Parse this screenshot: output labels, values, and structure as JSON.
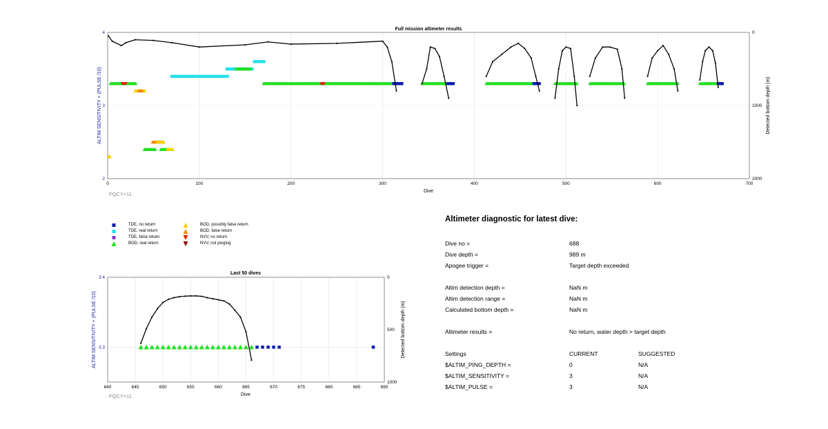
{
  "top_chart": {
    "title": "Full mission altimeter results",
    "ylabel_left": "ALTIM SENSITIVITY + (PULSE /10)",
    "ylabel_right": "Detected bottom depth (m)",
    "xlabel": "Dive",
    "footnote": "FQCY=11",
    "x_ticks": [
      "0",
      "100",
      "200",
      "300",
      "400",
      "500",
      "600",
      "700"
    ],
    "y_left_ticks": [
      "2",
      "3",
      "4"
    ],
    "y_right_ticks": [
      "0",
      "1000",
      "2000"
    ]
  },
  "bottom_chart": {
    "title": "Last 50 dives",
    "ylabel_left": "ALTIM SENSITIVITY + (PULSE /10)",
    "ylabel_right": "Detected bottom depth (m)",
    "xlabel": "Dive",
    "footnote": "FQCY=11",
    "x_ticks": [
      "640",
      "645",
      "650",
      "655",
      "660",
      "665",
      "670",
      "675",
      "680",
      "685",
      "690"
    ],
    "y_left_ticks": [
      "3.4",
      "3.3"
    ],
    "y_right_ticks": [
      "0",
      "500",
      "1000"
    ]
  },
  "legend": {
    "tde_no_return": "TDE, no return",
    "tde_real_return": "TDE, real return",
    "tde_false_return": "TDE, false return",
    "bod_real_return": "BOD, real return",
    "bod_possibly_false": "BOD, possibly false return",
    "bod_false_return": "BOD, false return",
    "nvv_no_return": "NVV, no return",
    "nvv_not_pinging": "NVV, not pinging"
  },
  "diagnostic": {
    "title": "Altimeter diagnostic for latest dive:",
    "dive_no_label": "Dive no =",
    "dive_no_value": "688",
    "dive_depth_label": "Dive depth =",
    "dive_depth_value": "989 m",
    "apogee_label": "Apogee trigger =",
    "apogee_value": "Target depth exceeded",
    "altim_det_depth_label": "Altim detection depth =",
    "altim_det_depth_value": "NaN m",
    "altim_det_range_label": "Altim detection range =",
    "altim_det_range_value": "NaN m",
    "calc_bottom_label": "Calculated bottom depth =",
    "calc_bottom_value": "NaN m",
    "results_label": "Altimeter results =",
    "results_value": "No return, water depth > target depth",
    "settings_label": "Settings",
    "current_label": "CURRENT",
    "suggested_label": "SUGGESTED",
    "ping_depth_label": "$ALTIM_PING_DEPTH =",
    "ping_depth_current": "0",
    "ping_depth_suggested": "N/A",
    "sensitivity_label": "$ALTIM_SENSITIVITY =",
    "sensitivity_current": "3",
    "sensitivity_suggested": "N/A",
    "pulse_label": "$ALTIM_PULSE =",
    "pulse_current": "3",
    "pulse_suggested": "N/A"
  },
  "colors": {
    "tde_no_return": "#0a1fb0",
    "tde_real_return": "#22e0ee",
    "tde_false_return": "#8a3dd0",
    "bod_real_return": "#22e022",
    "bod_possibly_false": "#f5d000",
    "bod_false_return": "#f08a00",
    "nvv_no_return": "#e02000",
    "nvv_not_pinging": "#8b1000",
    "depth_line": "#000000",
    "axis_label": "#1a1aa0"
  },
  "chart_data": [
    {
      "type": "scatter",
      "title": "Full mission altimeter results",
      "xlabel": "Dive",
      "ylabel": "ALTIM SENSITIVITY + (PULSE /10)",
      "ylabel_right": "Detected bottom depth (m)",
      "xlim": [
        0,
        700
      ],
      "ylim": [
        2,
        4
      ],
      "ylim_right": [
        2000,
        0
      ],
      "grid": true,
      "segments": [
        {
          "name": "BOD, real return",
          "y": 3.3,
          "x": [
            3,
            31
          ]
        },
        {
          "name": "NVV, no return",
          "y": 3.3,
          "x": [
            16,
            20
          ]
        },
        {
          "name": "BOD, possibly false return",
          "y": 3.2,
          "x": [
            30,
            41
          ]
        },
        {
          "name": "BOD, false return",
          "y": 3.2,
          "x": [
            34,
            38
          ]
        },
        {
          "name": "TDE, real return",
          "y": 3.4,
          "x": [
            70,
            131
          ]
        },
        {
          "name": "TDE, real return",
          "y": 3.5,
          "x": [
            130,
            158
          ]
        },
        {
          "name": "BOD, real return",
          "y": 3.5,
          "x": [
            140,
            156
          ]
        },
        {
          "name": "TDE, real return",
          "y": 3.6,
          "x": [
            160,
            171
          ]
        },
        {
          "name": "BOD, real return",
          "y": 3.3,
          "x": [
            170,
            312
          ]
        },
        {
          "name": "NVV, no return",
          "y": 3.3,
          "x": [
            233,
            236
          ]
        },
        {
          "name": "TDE, no return",
          "y": 3.3,
          "x": [
            312,
            321
          ]
        },
        {
          "name": "BOD, real return",
          "y": 3.3,
          "x": [
            343,
            371
          ]
        },
        {
          "name": "TDE, no return",
          "y": 3.3,
          "x": [
            371,
            377
          ]
        },
        {
          "name": "BOD, real return",
          "y": 3.3,
          "x": [
            413,
            465
          ]
        },
        {
          "name": "TDE, no return",
          "y": 3.3,
          "x": [
            465,
            471
          ]
        },
        {
          "name": "BOD, real return",
          "y": 3.3,
          "x": [
            488,
            512
          ]
        },
        {
          "name": "BOD, real return",
          "y": 3.3,
          "x": [
            526,
            564
          ]
        },
        {
          "name": "BOD, real return",
          "y": 3.3,
          "x": [
            589,
            622
          ]
        },
        {
          "name": "BOD, real return",
          "y": 3.3,
          "x": [
            646,
            666
          ]
        },
        {
          "name": "TDE, no return",
          "y": 3.3,
          "x": [
            666,
            671
          ]
        },
        {
          "name": "BOD, possibly false return",
          "y": 2.3,
          "x": [
            1,
            3
          ]
        },
        {
          "name": "BOD, real return",
          "y": 2.4,
          "x": [
            40,
            52
          ]
        },
        {
          "name": "BOD, false return",
          "y": 2.5,
          "x": [
            49,
            61
          ]
        },
        {
          "name": "BOD, possibly false return",
          "y": 2.5,
          "x": [
            54,
            61
          ]
        },
        {
          "name": "BOD, real return",
          "y": 2.4,
          "x": [
            58,
            67
          ]
        },
        {
          "name": "BOD, possibly false return",
          "y": 2.4,
          "x": [
            65,
            71
          ]
        }
      ],
      "depth_series": {
        "name": "Detected bottom depth",
        "x": [
          1,
          5,
          15,
          20,
          30,
          50,
          70,
          100,
          150,
          175,
          200,
          250,
          300,
          305,
          310,
          315
        ],
        "depth_m": [
          50,
          120,
          180,
          140,
          100,
          110,
          140,
          200,
          170,
          130,
          160,
          150,
          120,
          200,
          400,
          800
        ]
      },
      "depth_arcs": [
        {
          "x": [
            343,
            348,
            352,
            357,
            362,
            367,
            372
          ],
          "depth_m": [
            700,
            500,
            200,
            220,
            330,
            600,
            900
          ]
        },
        {
          "x": [
            413,
            420,
            430,
            440,
            448,
            455,
            462,
            467,
            471
          ],
          "depth_m": [
            600,
            400,
            300,
            200,
            150,
            220,
            350,
            600,
            800
          ]
        },
        {
          "x": [
            488,
            492,
            496,
            500,
            505,
            509,
            512
          ],
          "depth_m": [
            900,
            500,
            250,
            200,
            220,
            600,
            1000
          ]
        },
        {
          "x": [
            526,
            532,
            540,
            548,
            556,
            561,
            564
          ],
          "depth_m": [
            600,
            350,
            200,
            200,
            230,
            500,
            900
          ]
        },
        {
          "x": [
            589,
            594,
            600,
            606,
            612,
            618,
            622
          ],
          "depth_m": [
            600,
            350,
            250,
            180,
            300,
            500,
            800
          ]
        },
        {
          "x": [
            646,
            649,
            652,
            656,
            660,
            663,
            666
          ],
          "depth_m": [
            650,
            400,
            250,
            200,
            250,
            420,
            750
          ]
        }
      ]
    },
    {
      "type": "scatter",
      "title": "Last 50 dives",
      "xlabel": "Dive",
      "ylabel": "ALTIM SENSITIVITY + (PULSE /10)",
      "ylabel_right": "Detected bottom depth (m)",
      "xlim": [
        640,
        690
      ],
      "ylim": [
        3.25,
        3.4
      ],
      "ylim_right": [
        1000,
        0
      ],
      "grid": true,
      "bod_real_return": {
        "x": [
          646,
          647,
          648,
          649,
          650,
          651,
          652,
          653,
          654,
          655,
          656,
          657,
          658,
          659,
          660,
          661,
          662,
          663,
          664,
          665,
          666
        ],
        "y": 3.3
      },
      "tde_no_return": {
        "x": [
          667,
          668,
          669,
          670,
          671,
          688
        ],
        "y": 3.3
      },
      "depth_series": {
        "x": [
          646,
          647,
          648,
          649,
          650,
          651,
          652,
          653,
          654,
          655,
          656,
          657,
          658,
          659,
          660,
          661,
          662,
          663,
          664,
          665,
          666
        ],
        "depth_m": [
          630,
          490,
          380,
          300,
          240,
          210,
          195,
          185,
          180,
          178,
          178,
          182,
          195,
          205,
          215,
          225,
          255,
          315,
          380,
          520,
          790
        ]
      }
    }
  ]
}
